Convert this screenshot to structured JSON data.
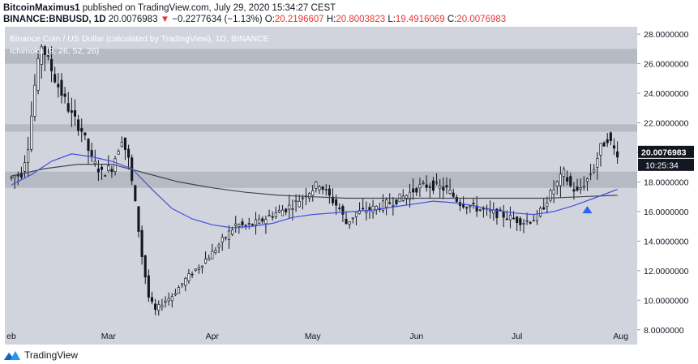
{
  "header": {
    "author": "BitcoinMaximus1",
    "published_text": "published on TradingView.com, July 29, 2020 15:34:27 CEST",
    "symbol": "BINANCE:BNBUSD, 1D",
    "last": "20.0076983",
    "change_arrow": "▼",
    "change": "−0.2277634 (−1.13%)",
    "open_label": "O:",
    "open": "20.2196607",
    "high_label": "H:",
    "high": "20.8003823",
    "low_label": "L:",
    "low": "19.4916069",
    "close_label": "C:",
    "close": "20.0076983"
  },
  "footer": {
    "brand": "TradingView",
    "logo_icon": "tradingview-logo-icon"
  },
  "colors": {
    "background": "#d1d4dc",
    "zone": "#b2b5be",
    "candle": "#131722",
    "ma_blue": "#3f51e0",
    "ma_black": "#434651",
    "marker": "#2962ff",
    "negative": "#e53935"
  },
  "chart_data": {
    "type": "candlestick",
    "title": "Binance Coin / US Dollar (calculated by TradingView), 1D, BINANCE",
    "indicator": "Ichimoku (9, 26, 52, 26)",
    "ylim": [
      7,
      28.5
    ],
    "y_ticks": [
      "8.0000000",
      "10.0000000",
      "12.0000000",
      "14.0000000",
      "16.0000000",
      "18.0000000",
      "20.0000000",
      "22.0000000",
      "24.0000000",
      "26.0000000",
      "28.0000000"
    ],
    "x_ticks": [
      {
        "label": "eb",
        "day": 0
      },
      {
        "label": "Mar",
        "day": 29
      },
      {
        "label": "Apr",
        "day": 60
      },
      {
        "label": "May",
        "day": 90
      },
      {
        "label": "Jun",
        "day": 121
      },
      {
        "label": "Jul",
        "day": 151
      },
      {
        "label": "Aug",
        "day": 182
      }
    ],
    "last_price": "20.0076983",
    "countdown": "10:25:34",
    "shaded_zones": [
      {
        "low": 26.0,
        "high": 27.0
      },
      {
        "low": 21.4,
        "high": 21.9
      },
      {
        "low": 17.6,
        "high": 18.7
      }
    ],
    "signal_marker": {
      "day": 172,
      "price": 16.1,
      "shape": "triangle-up"
    },
    "anchors": [
      {
        "day": 0,
        "price": 18.3
      },
      {
        "day": 3,
        "price": 18.6
      },
      {
        "day": 5,
        "price": 20.5
      },
      {
        "day": 7,
        "price": 24.5
      },
      {
        "day": 9,
        "price": 27.3
      },
      {
        "day": 11,
        "price": 26.2
      },
      {
        "day": 13,
        "price": 25.0
      },
      {
        "day": 15,
        "price": 24.0
      },
      {
        "day": 18,
        "price": 22.5
      },
      {
        "day": 21,
        "price": 21.5
      },
      {
        "day": 24,
        "price": 19.5
      },
      {
        "day": 27,
        "price": 18.6
      },
      {
        "day": 30,
        "price": 19.0
      },
      {
        "day": 33,
        "price": 21.0
      },
      {
        "day": 35,
        "price": 19.5
      },
      {
        "day": 37,
        "price": 16.5
      },
      {
        "day": 39,
        "price": 13.0
      },
      {
        "day": 41,
        "price": 10.2
      },
      {
        "day": 43,
        "price": 9.3
      },
      {
        "day": 45,
        "price": 9.8
      },
      {
        "day": 48,
        "price": 10.3
      },
      {
        "day": 52,
        "price": 11.4
      },
      {
        "day": 56,
        "price": 12.3
      },
      {
        "day": 60,
        "price": 13.2
      },
      {
        "day": 64,
        "price": 14.3
      },
      {
        "day": 67,
        "price": 15.1
      },
      {
        "day": 70,
        "price": 15.0
      },
      {
        "day": 74,
        "price": 15.3
      },
      {
        "day": 78,
        "price": 15.8
      },
      {
        "day": 82,
        "price": 16.2
      },
      {
        "day": 85,
        "price": 16.6
      },
      {
        "day": 88,
        "price": 17.2
      },
      {
        "day": 92,
        "price": 17.9
      },
      {
        "day": 95,
        "price": 17.0
      },
      {
        "day": 98,
        "price": 16.2
      },
      {
        "day": 100,
        "price": 15.2
      },
      {
        "day": 103,
        "price": 15.9
      },
      {
        "day": 108,
        "price": 16.2
      },
      {
        "day": 113,
        "price": 16.6
      },
      {
        "day": 118,
        "price": 17.1
      },
      {
        "day": 121,
        "price": 17.6
      },
      {
        "day": 125,
        "price": 17.8
      },
      {
        "day": 130,
        "price": 17.5
      },
      {
        "day": 134,
        "price": 16.6
      },
      {
        "day": 138,
        "price": 16.3
      },
      {
        "day": 142,
        "price": 16.0
      },
      {
        "day": 146,
        "price": 15.8
      },
      {
        "day": 150,
        "price": 15.5
      },
      {
        "day": 153,
        "price": 15.3
      },
      {
        "day": 157,
        "price": 15.6
      },
      {
        "day": 160,
        "price": 16.8
      },
      {
        "day": 163,
        "price": 17.9
      },
      {
        "day": 165,
        "price": 18.6
      },
      {
        "day": 167,
        "price": 17.7
      },
      {
        "day": 169,
        "price": 17.3
      },
      {
        "day": 172,
        "price": 18.2
      },
      {
        "day": 174,
        "price": 19.0
      },
      {
        "day": 176,
        "price": 20.3
      },
      {
        "day": 178,
        "price": 21.0
      },
      {
        "day": 180,
        "price": 20.2
      },
      {
        "day": 181,
        "price": 20.0
      }
    ],
    "ma_blue": [
      {
        "day": 0,
        "price": 17.8
      },
      {
        "day": 6,
        "price": 18.5
      },
      {
        "day": 12,
        "price": 19.4
      },
      {
        "day": 18,
        "price": 19.9
      },
      {
        "day": 24,
        "price": 19.7
      },
      {
        "day": 30,
        "price": 19.4
      },
      {
        "day": 36,
        "price": 18.9
      },
      {
        "day": 42,
        "price": 17.5
      },
      {
        "day": 48,
        "price": 16.2
      },
      {
        "day": 54,
        "price": 15.5
      },
      {
        "day": 60,
        "price": 15.1
      },
      {
        "day": 66,
        "price": 14.9
      },
      {
        "day": 72,
        "price": 15.0
      },
      {
        "day": 78,
        "price": 15.2
      },
      {
        "day": 84,
        "price": 15.6
      },
      {
        "day": 90,
        "price": 15.8
      },
      {
        "day": 96,
        "price": 15.9
      },
      {
        "day": 102,
        "price": 16.0
      },
      {
        "day": 108,
        "price": 16.1
      },
      {
        "day": 114,
        "price": 16.3
      },
      {
        "day": 120,
        "price": 16.5
      },
      {
        "day": 126,
        "price": 16.7
      },
      {
        "day": 132,
        "price": 16.6
      },
      {
        "day": 138,
        "price": 16.4
      },
      {
        "day": 144,
        "price": 16.1
      },
      {
        "day": 150,
        "price": 15.9
      },
      {
        "day": 156,
        "price": 15.8
      },
      {
        "day": 162,
        "price": 16.0
      },
      {
        "day": 168,
        "price": 16.4
      },
      {
        "day": 174,
        "price": 16.9
      },
      {
        "day": 181,
        "price": 17.5
      }
    ],
    "ma_black": [
      {
        "day": 0,
        "price": 18.4
      },
      {
        "day": 10,
        "price": 18.9
      },
      {
        "day": 20,
        "price": 19.2
      },
      {
        "day": 30,
        "price": 19.2
      },
      {
        "day": 40,
        "price": 18.6
      },
      {
        "day": 50,
        "price": 18.0
      },
      {
        "day": 60,
        "price": 17.6
      },
      {
        "day": 70,
        "price": 17.3
      },
      {
        "day": 80,
        "price": 17.1
      },
      {
        "day": 90,
        "price": 17.0
      },
      {
        "day": 100,
        "price": 16.9
      },
      {
        "day": 110,
        "price": 16.9
      },
      {
        "day": 120,
        "price": 16.9
      },
      {
        "day": 130,
        "price": 16.9
      },
      {
        "day": 140,
        "price": 16.9
      },
      {
        "day": 150,
        "price": 16.9
      },
      {
        "day": 160,
        "price": 16.9
      },
      {
        "day": 170,
        "price": 17.0
      },
      {
        "day": 181,
        "price": 17.1
      }
    ]
  }
}
